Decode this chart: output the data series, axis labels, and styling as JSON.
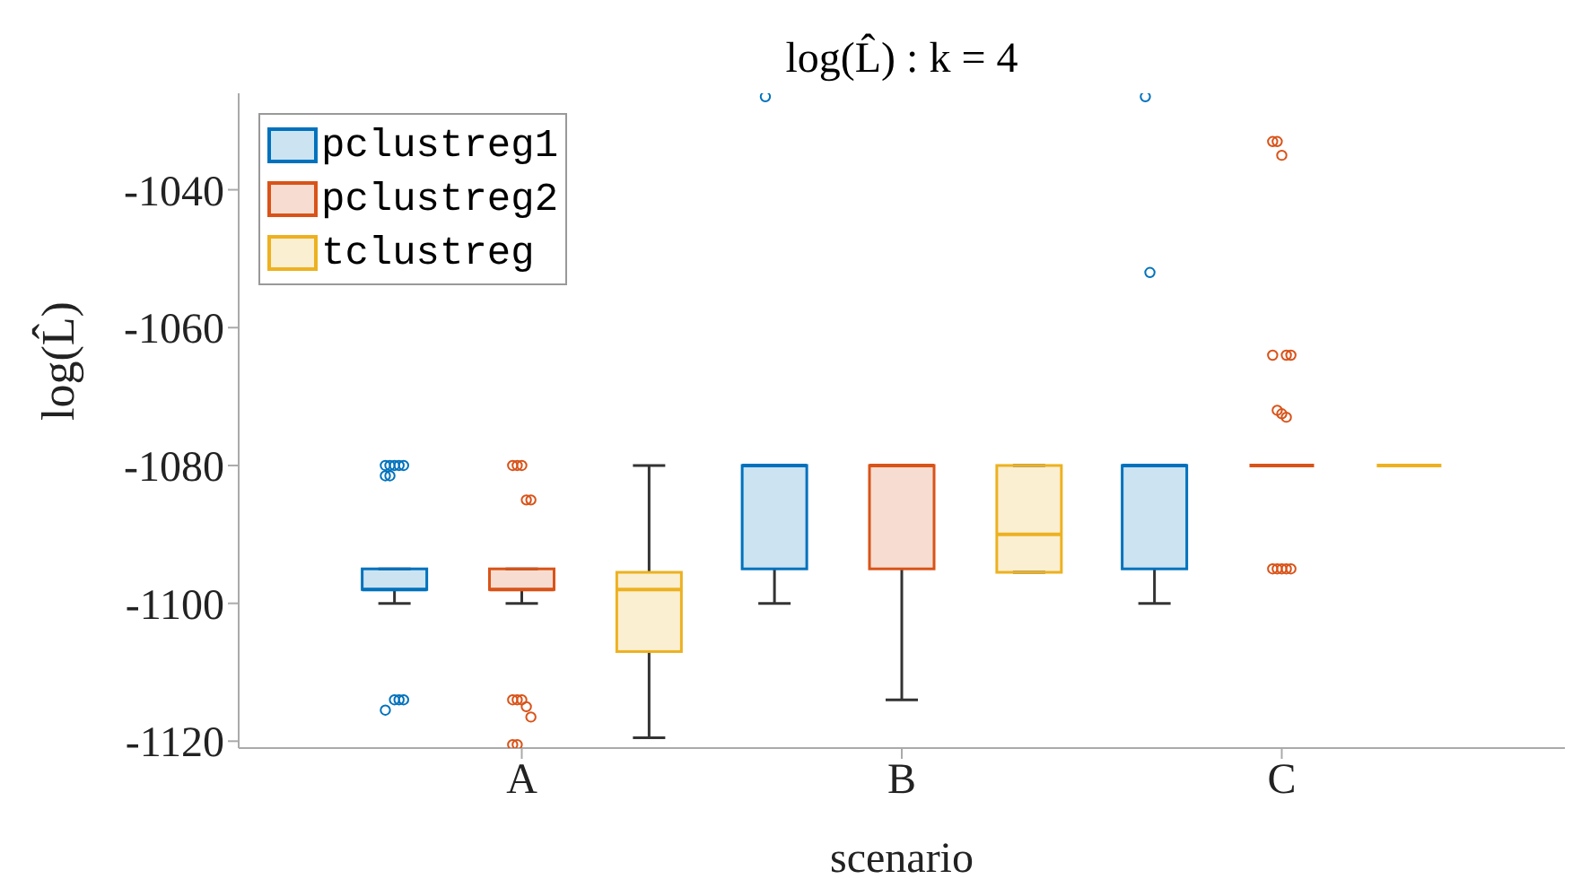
{
  "chart_data": {
    "type": "box",
    "title": "log(L̂) : k = 4",
    "xlabel": "scenario",
    "ylabel": "log(L̂)",
    "categories": [
      "A",
      "B",
      "C"
    ],
    "ylim": [
      -1121,
      -1026
    ],
    "yticks": [
      -1120,
      -1100,
      -1080,
      -1060,
      -1040
    ],
    "grid": false,
    "legend": "top left",
    "series": [
      {
        "name": "pclustreg1",
        "color": "#0072bd",
        "boxes": [
          {
            "low": -1100,
            "q1": -1098,
            "median": -1098,
            "q3": -1095,
            "high": -1095,
            "outliers": [
              -1080,
              -1080,
              -1080,
              -1080,
              -1080,
              -1081.5,
              -1081.5,
              -1114,
              -1114,
              -1114,
              -1115.5
            ]
          },
          {
            "low": -1100,
            "q1": -1095,
            "median": -1080,
            "q3": -1080,
            "high": -1080,
            "outliers": [
              -1026.5
            ]
          },
          {
            "low": -1100,
            "q1": -1095,
            "median": -1080,
            "q3": -1080,
            "high": -1080,
            "outliers": [
              -1026.5,
              -1052
            ]
          }
        ]
      },
      {
        "name": "pclustreg2",
        "color": "#d95319",
        "boxes": [
          {
            "low": -1100,
            "q1": -1098,
            "median": -1098,
            "q3": -1095,
            "high": -1095,
            "outliers": [
              -1080,
              -1080,
              -1080,
              -1085,
              -1085,
              -1114,
              -1114,
              -1114,
              -1115,
              -1116.5,
              -1120.5,
              -1120.5
            ]
          },
          {
            "low": -1114,
            "q1": -1095,
            "median": -1080,
            "q3": -1080,
            "high": -1080
          },
          {
            "low": -1080,
            "q1": -1080,
            "median": -1080,
            "q3": -1080,
            "high": -1080,
            "outliers": [
              -1033,
              -1033,
              -1035,
              -1064,
              -1064,
              -1064,
              -1072,
              -1072.5,
              -1073,
              -1095,
              -1095,
              -1095,
              -1095,
              -1095
            ]
          }
        ]
      },
      {
        "name": "tclustreg",
        "color": "#edb120",
        "boxes": [
          {
            "low": -1119.5,
            "q1": -1107,
            "median": -1098,
            "q3": -1095.5,
            "high": -1080
          },
          {
            "low": -1095.5,
            "q1": -1095.5,
            "median": -1090,
            "q3": -1080,
            "high": -1080
          },
          {
            "low": -1080,
            "q1": -1080,
            "median": -1080,
            "q3": -1080,
            "high": -1080
          }
        ]
      }
    ]
  }
}
